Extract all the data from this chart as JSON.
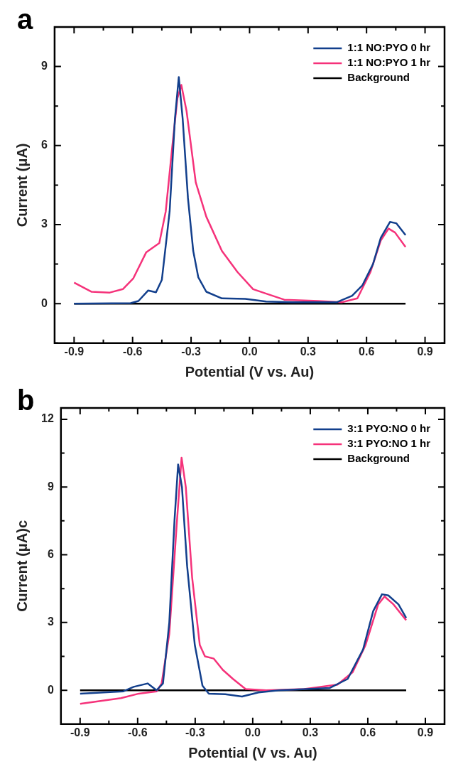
{
  "chart_data": [
    {
      "type": "line",
      "title": "a",
      "xlabel": "Potential (V vs. Au)",
      "ylabel": "Current (μA)",
      "legend": "top right",
      "xlim": [
        -1.0,
        1.0
      ],
      "xticks": [
        -0.9,
        {
          "value": -0.75,
          "label": null
        },
        -0.6,
        {
          "value": -0.45,
          "label": null
        },
        -0.3,
        {
          "value": -0.15,
          "label": null
        },
        {
          "value": 0,
          "label": "0.0"
        },
        {
          "value": 0.15,
          "label": null
        },
        0.3,
        {
          "value": 0.45,
          "label": null
        },
        0.6,
        {
          "value": 0.75,
          "label": null
        },
        0.9
      ],
      "ylim": [
        -1.5,
        10.5
      ],
      "yticks": [
        {
          "value": -1.5,
          "label": null
        },
        0,
        {
          "value": 1.5,
          "label": null
        },
        3,
        {
          "value": 4.5,
          "label": null
        },
        6,
        {
          "value": 7.5,
          "label": null
        },
        9
      ],
      "series": [
        {
          "name": "1:1 NO:PYO 0 hr",
          "color": "#123f8c",
          "x": [
            -0.9,
            -0.61,
            -0.57,
            -0.52,
            -0.48,
            -0.45,
            -0.41,
            -0.383,
            -0.363,
            -0.343,
            -0.316,
            -0.289,
            -0.263,
            -0.222,
            -0.142,
            -0.022,
            0.085,
            0.219,
            0.446,
            0.526,
            0.579,
            0.633,
            0.673,
            0.72,
            0.753,
            0.8
          ],
          "values": [
            0,
            0.02,
            0.1,
            0.5,
            0.43,
            0.9,
            3.5,
            7,
            8.6,
            7,
            4,
            2,
            1,
            0.45,
            0.2,
            0.18,
            0.08,
            0.05,
            0.05,
            0.3,
            0.7,
            1.5,
            2.5,
            3.1,
            3.05,
            2.6
          ]
        },
        {
          "name": "1:1 NO:PYO 1 hr",
          "color": "#f5327a",
          "x": [
            -0.9,
            -0.81,
            -0.717,
            -0.65,
            -0.597,
            -0.53,
            -0.463,
            -0.43,
            -0.396,
            -0.37,
            -0.35,
            -0.323,
            -0.276,
            -0.222,
            -0.142,
            -0.062,
            0.018,
            0.085,
            0.178,
            0.352,
            0.472,
            0.553,
            0.62,
            0.673,
            0.713,
            0.746,
            0.8
          ],
          "values": [
            0.8,
            0.45,
            0.42,
            0.55,
            0.95,
            1.95,
            2.3,
            3.5,
            6,
            7.8,
            8.3,
            7.3,
            4.6,
            3.3,
            2,
            1.2,
            0.55,
            0.38,
            0.15,
            0.1,
            0.05,
            0.2,
            1.2,
            2.4,
            2.85,
            2.7,
            2.15
          ]
        },
        {
          "name": "Background",
          "color": "#000000",
          "x": [
            -0.9,
            0.8
          ],
          "values": [
            0,
            0
          ]
        }
      ]
    },
    {
      "type": "line",
      "title": "b",
      "xlabel": "Potential (V vs. Au)",
      "ylabel": "Current (μA)c",
      "legend": "top right",
      "xlim": [
        -1.0,
        1.0
      ],
      "xticks": [
        -0.9,
        {
          "value": -0.75,
          "label": null
        },
        -0.6,
        {
          "value": -0.45,
          "label": null
        },
        -0.3,
        {
          "value": -0.15,
          "label": null
        },
        {
          "value": 0,
          "label": "0.0"
        },
        {
          "value": 0.15,
          "label": null
        },
        0.3,
        {
          "value": 0.45,
          "label": null
        },
        0.6,
        {
          "value": 0.75,
          "label": null
        },
        0.9
      ],
      "ylim": [
        -1.5,
        12.5
      ],
      "yticks": [
        0,
        {
          "value": 1.5,
          "label": null
        },
        3,
        {
          "value": 4.5,
          "label": null
        },
        6,
        {
          "value": 7.5,
          "label": null
        },
        9,
        {
          "value": 10.5,
          "label": null
        },
        12
      ],
      "series": [
        {
          "name": "3:1 PYO:NO 0 hr",
          "color": "#123f8c",
          "x": [
            -0.9,
            -0.674,
            -0.621,
            -0.548,
            -0.501,
            -0.468,
            -0.435,
            -0.408,
            -0.389,
            -0.369,
            -0.342,
            -0.302,
            -0.262,
            -0.229,
            -0.143,
            -0.056,
            0.03,
            0.136,
            0.402,
            0.495,
            0.575,
            0.628,
            0.674,
            0.707,
            0.76,
            0.8
          ],
          "values": [
            -0.15,
            -0.05,
            0.15,
            0.3,
            0,
            0.3,
            3,
            7.5,
            10,
            9,
            5.5,
            2,
            0.2,
            -0.15,
            -0.18,
            -0.28,
            -0.1,
            0,
            0.1,
            0.5,
            1.8,
            3.5,
            4.25,
            4.2,
            3.8,
            3.2
          ]
        },
        {
          "name": "3:1 PYO:NO 1 hr",
          "color": "#f5327a",
          "x": [
            -0.9,
            -0.687,
            -0.594,
            -0.501,
            -0.475,
            -0.435,
            -0.395,
            -0.371,
            -0.349,
            -0.316,
            -0.276,
            -0.249,
            -0.203,
            -0.156,
            -0.103,
            -0.037,
            0.07,
            0.269,
            0.442,
            0.521,
            0.588,
            0.654,
            0.687,
            0.734,
            0.8
          ],
          "values": [
            -0.6,
            -0.35,
            -0.15,
            -0.05,
            0.3,
            2.5,
            7.5,
            10.3,
            9,
            5,
            2,
            1.5,
            1.4,
            0.9,
            0.5,
            0.05,
            0,
            0.05,
            0.25,
            0.8,
            2,
            3.8,
            4.15,
            3.8,
            3.1
          ]
        },
        {
          "name": "Background",
          "color": "#000000",
          "x": [
            -0.9,
            0.8
          ],
          "values": [
            0,
            0
          ]
        }
      ]
    }
  ]
}
